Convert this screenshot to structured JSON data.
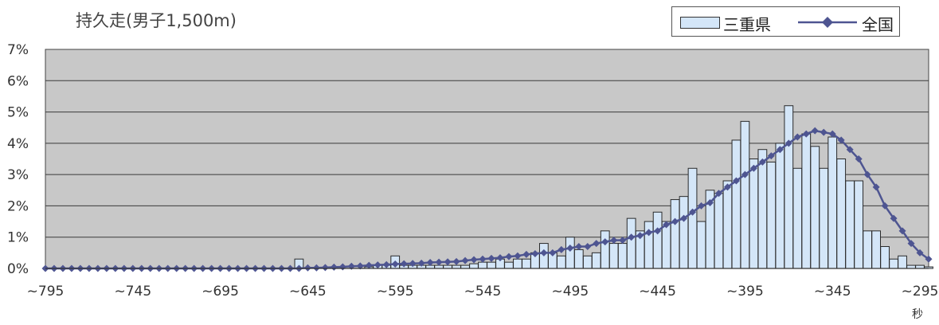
{
  "chart_data": {
    "type": "bar",
    "title": "持久走(男子1,500m)",
    "xlabel": "秒",
    "ylabel": "",
    "ylim": [
      0,
      7
    ],
    "yticks": [
      "7%",
      "6%",
      "5%",
      "4%",
      "3%",
      "2%",
      "1%",
      "0%"
    ],
    "xticks": [
      "~795",
      "~745",
      "~695",
      "~645",
      "~595",
      "~545",
      "~495",
      "~445",
      "~395",
      "~345",
      "~295"
    ],
    "grid": true,
    "legend_position": "top-right",
    "x": [
      795,
      790,
      785,
      780,
      775,
      770,
      765,
      760,
      755,
      750,
      745,
      740,
      735,
      730,
      725,
      720,
      715,
      710,
      705,
      700,
      695,
      690,
      685,
      680,
      675,
      670,
      665,
      660,
      655,
      650,
      645,
      640,
      635,
      630,
      625,
      620,
      615,
      610,
      605,
      600,
      595,
      590,
      585,
      580,
      575,
      570,
      565,
      560,
      555,
      550,
      545,
      540,
      535,
      530,
      525,
      520,
      515,
      510,
      505,
      500,
      495,
      490,
      485,
      480,
      475,
      470,
      465,
      460,
      455,
      450,
      445,
      440,
      435,
      430,
      425,
      420,
      415,
      410,
      405,
      400,
      395,
      390,
      385,
      380,
      375,
      370,
      365,
      360,
      355,
      350,
      345,
      340,
      335,
      330,
      325,
      320,
      315,
      310,
      305,
      300,
      295,
      290
    ],
    "series": [
      {
        "name": "三重県",
        "type": "bar",
        "color": "#d4e6f8",
        "values": [
          0,
          0,
          0,
          0,
          0,
          0,
          0,
          0,
          0,
          0,
          0,
          0,
          0,
          0,
          0,
          0,
          0,
          0,
          0,
          0,
          0,
          0,
          0,
          0,
          0,
          0,
          0,
          0,
          0,
          0.3,
          0,
          0,
          0,
          0,
          0,
          0,
          0,
          0.05,
          0.1,
          0.1,
          0.4,
          0.1,
          0.1,
          0.1,
          0.1,
          0.1,
          0.1,
          0.1,
          0.1,
          0.15,
          0.2,
          0.2,
          0.3,
          0.2,
          0.3,
          0.3,
          0.5,
          0.8,
          0.5,
          0.4,
          1.0,
          0.6,
          0.4,
          0.5,
          1.2,
          0.8,
          0.8,
          1.6,
          1.2,
          1.5,
          1.8,
          1.5,
          2.2,
          2.3,
          3.2,
          1.5,
          2.5,
          2.4,
          2.8,
          4.1,
          4.7,
          3.5,
          3.8,
          3.4,
          4.0,
          5.2,
          3.2,
          4.3,
          3.9,
          3.2,
          4.2,
          3.5,
          2.8,
          2.8,
          1.2,
          1.2,
          0.7,
          0.3,
          0.4,
          0.1,
          0.1,
          0.05
        ]
      },
      {
        "name": "全国",
        "type": "line",
        "color": "#4e5591",
        "values": [
          0,
          0,
          0,
          0,
          0,
          0,
          0,
          0,
          0,
          0,
          0,
          0,
          0,
          0,
          0,
          0,
          0,
          0,
          0,
          0,
          0,
          0,
          0,
          0,
          0,
          0,
          0,
          0,
          0,
          0,
          0.02,
          0.02,
          0.03,
          0.04,
          0.05,
          0.07,
          0.08,
          0.1,
          0.11,
          0.12,
          0.14,
          0.15,
          0.16,
          0.17,
          0.19,
          0.2,
          0.21,
          0.22,
          0.25,
          0.28,
          0.3,
          0.32,
          0.34,
          0.38,
          0.4,
          0.45,
          0.47,
          0.5,
          0.5,
          0.6,
          0.65,
          0.7,
          0.7,
          0.8,
          0.85,
          0.9,
          0.9,
          1.0,
          1.05,
          1.15,
          1.2,
          1.4,
          1.5,
          1.6,
          1.8,
          2.0,
          2.1,
          2.4,
          2.6,
          2.8,
          3.0,
          3.2,
          3.4,
          3.6,
          3.8,
          4.0,
          4.2,
          4.3,
          4.4,
          4.35,
          4.3,
          4.1,
          3.8,
          3.5,
          3.0,
          2.6,
          2.0,
          1.6,
          1.2,
          0.8,
          0.5,
          0.3
        ]
      }
    ]
  }
}
